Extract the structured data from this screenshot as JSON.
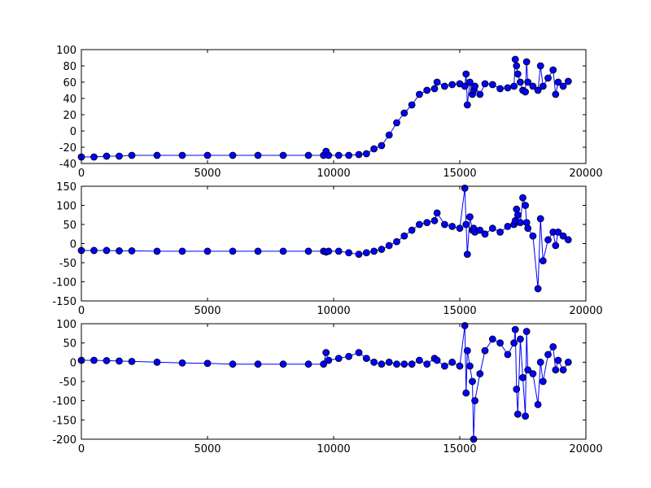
{
  "chart_data": [
    {
      "type": "line",
      "color": "#0000ff",
      "x": [
        0,
        500,
        1000,
        1500,
        2000,
        3000,
        4000,
        5000,
        6000,
        7000,
        8000,
        9000,
        9600,
        9700,
        9800,
        10200,
        10600,
        11000,
        11300,
        11600,
        11900,
        12200,
        12500,
        12800,
        13100,
        13400,
        13700,
        14000,
        14100,
        14400,
        14700,
        15000,
        15200,
        15250,
        15300,
        15400,
        15500,
        15550,
        15600,
        15800,
        16000,
        16300,
        16600,
        16900,
        17150,
        17200,
        17250,
        17300,
        17400,
        17500,
        17600,
        17650,
        17700,
        17900,
        18100,
        18200,
        18300,
        18500,
        18700,
        18800,
        18900,
        19100,
        19300
      ],
      "values": [
        -32,
        -32,
        -31,
        -31,
        -30,
        -30,
        -30,
        -30,
        -30,
        -30,
        -30,
        -30,
        -30,
        -25,
        -30,
        -30,
        -30,
        -29,
        -28,
        -22,
        -18,
        -5,
        10,
        22,
        32,
        45,
        50,
        52,
        60,
        55,
        57,
        58,
        55,
        70,
        32,
        60,
        45,
        50,
        55,
        45,
        58,
        57,
        52,
        53,
        55,
        88,
        80,
        70,
        60,
        50,
        48,
        85,
        60,
        55,
        50,
        80,
        55,
        65,
        75,
        45,
        60,
        55,
        61
      ],
      "xlim": [
        0,
        20000
      ],
      "xticks": [
        0,
        5000,
        10000,
        15000,
        20000
      ],
      "ylim": [
        -40,
        100
      ],
      "yticks": [
        -40,
        -20,
        0,
        20,
        40,
        60,
        80,
        100
      ]
    },
    {
      "type": "line",
      "color": "#0000ff",
      "x": [
        0,
        500,
        1000,
        1500,
        2000,
        3000,
        4000,
        5000,
        6000,
        7000,
        8000,
        9000,
        9600,
        9700,
        9800,
        10200,
        10600,
        11000,
        11300,
        11600,
        11900,
        12200,
        12500,
        12800,
        13100,
        13400,
        13700,
        14000,
        14100,
        14400,
        14700,
        15000,
        15200,
        15250,
        15300,
        15400,
        15500,
        15550,
        15600,
        15800,
        16000,
        16300,
        16600,
        16900,
        17150,
        17200,
        17250,
        17300,
        17400,
        17500,
        17600,
        17650,
        17700,
        17900,
        18100,
        18200,
        18300,
        18500,
        18700,
        18800,
        18900,
        19100,
        19300
      ],
      "values": [
        -18,
        -18,
        -18,
        -19,
        -19,
        -20,
        -20,
        -20,
        -20,
        -20,
        -20,
        -20,
        -20,
        -22,
        -20,
        -20,
        -24,
        -28,
        -24,
        -20,
        -15,
        -5,
        5,
        20,
        35,
        50,
        55,
        60,
        80,
        50,
        45,
        40,
        145,
        50,
        -28,
        70,
        35,
        40,
        30,
        35,
        25,
        40,
        30,
        45,
        50,
        60,
        90,
        75,
        55,
        120,
        100,
        55,
        40,
        20,
        -118,
        65,
        -45,
        10,
        30,
        -5,
        30,
        20,
        10
      ],
      "xlim": [
        0,
        20000
      ],
      "xticks": [
        0,
        5000,
        10000,
        15000,
        20000
      ],
      "ylim": [
        -150,
        150
      ],
      "yticks": [
        -150,
        -100,
        -50,
        0,
        50,
        100,
        150
      ]
    },
    {
      "type": "line",
      "color": "#0000ff",
      "x": [
        0,
        500,
        1000,
        1500,
        2000,
        3000,
        4000,
        5000,
        6000,
        7000,
        8000,
        9000,
        9600,
        9700,
        9800,
        10200,
        10600,
        11000,
        11300,
        11600,
        11900,
        12200,
        12500,
        12800,
        13100,
        13400,
        13700,
        14000,
        14100,
        14400,
        14700,
        15000,
        15200,
        15250,
        15300,
        15400,
        15500,
        15550,
        15600,
        15800,
        16000,
        16300,
        16600,
        16900,
        17150,
        17200,
        17250,
        17300,
        17400,
        17500,
        17600,
        17650,
        17700,
        17900,
        18100,
        18200,
        18300,
        18500,
        18700,
        18800,
        18900,
        19100,
        19300
      ],
      "values": [
        5,
        5,
        4,
        3,
        2,
        0,
        -2,
        -3,
        -5,
        -5,
        -5,
        -5,
        -5,
        25,
        5,
        10,
        15,
        25,
        10,
        0,
        -5,
        0,
        -5,
        -5,
        -5,
        5,
        -5,
        10,
        5,
        -10,
        0,
        -10,
        95,
        -80,
        30,
        -10,
        -50,
        -200,
        -100,
        -30,
        30,
        60,
        50,
        20,
        50,
        85,
        -70,
        -135,
        60,
        -40,
        -140,
        80,
        -20,
        -30,
        -110,
        0,
        -50,
        20,
        40,
        -20,
        5,
        -20,
        0
      ],
      "xlim": [
        0,
        20000
      ],
      "xticks": [
        0,
        5000,
        10000,
        15000,
        20000
      ],
      "ylim": [
        -200,
        100
      ],
      "yticks": [
        -200,
        -150,
        -100,
        -50,
        0,
        50,
        100
      ]
    }
  ]
}
